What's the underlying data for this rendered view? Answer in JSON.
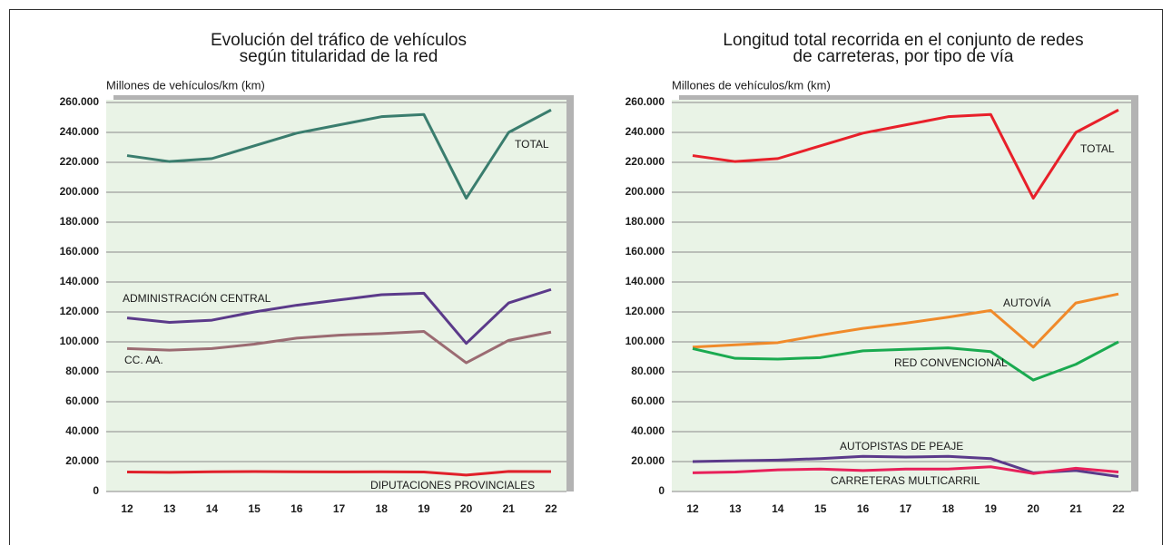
{
  "chart_data": [
    {
      "type": "line",
      "title": [
        "Evolución del tráfico de vehículos",
        "según titularidad de la red"
      ],
      "y_label": "Millones de vehículos/km (km)",
      "categories": [
        "12",
        "13",
        "14",
        "15",
        "16",
        "17",
        "18",
        "19",
        "20",
        "21",
        "22"
      ],
      "ylim": [
        0,
        260000
      ],
      "yticks": [
        0,
        {
          "value": 20000,
          "label": "20.000"
        },
        {
          "value": 40000,
          "label": "40.000"
        },
        {
          "value": 60000,
          "label": "60.000"
        },
        {
          "value": 80000,
          "label": "80.000"
        },
        {
          "value": 100000,
          "label": "100.000"
        },
        {
          "value": 120000,
          "label": "120.000"
        },
        {
          "value": 140000,
          "label": "140.000"
        },
        {
          "value": 160000,
          "label": "160.000"
        },
        {
          "value": 180000,
          "label": "180.000"
        },
        {
          "value": 200000,
          "label": "200.000"
        },
        {
          "value": 220000,
          "label": "220.000"
        },
        {
          "value": 240000,
          "label": "240.000"
        },
        {
          "value": 260000,
          "label": "260.000"
        }
      ],
      "grid": true,
      "series": [
        {
          "name": "TOTAL",
          "color": "#3a7d6e",
          "values": [
            224500,
            220500,
            222500,
            231000,
            239500,
            245000,
            250500,
            252000,
            196000,
            240000,
            255000
          ]
        },
        {
          "name": "ADMINISTRACIÓN CENTRAL",
          "color": "#5b3a8a",
          "values": [
            116000,
            113000,
            114500,
            120000,
            124500,
            128000,
            131500,
            132500,
            99000,
            126000,
            135000
          ]
        },
        {
          "name": "CC. AA.",
          "color": "#9b6b72",
          "values": [
            95500,
            94500,
            95500,
            98500,
            102500,
            104500,
            105500,
            107000,
            86000,
            101000,
            106500
          ]
        },
        {
          "name": "DIPUTACIONES PROVINCIALES",
          "color": "#e0202a",
          "values": [
            13000,
            12800,
            13200,
            13300,
            13200,
            13100,
            13200,
            13000,
            11000,
            13400,
            13300
          ]
        }
      ]
    },
    {
      "type": "line",
      "title": [
        "Longitud  total recorrida en el conjunto de redes",
        "de carreteras, por tipo de vía"
      ],
      "y_label": "Millones de vehículos/km (km)",
      "categories": [
        "12",
        "13",
        "14",
        "15",
        "16",
        "17",
        "18",
        "19",
        "20",
        "21",
        "22"
      ],
      "ylim": [
        0,
        260000
      ],
      "yticks": [
        0,
        {
          "value": 20000,
          "label": "20.000"
        },
        {
          "value": 40000,
          "label": "40.000"
        },
        {
          "value": 60000,
          "label": "60.000"
        },
        {
          "value": 80000,
          "label": "80.000"
        },
        {
          "value": 100000,
          "label": "100.000"
        },
        {
          "value": 120000,
          "label": "120.000"
        },
        {
          "value": 140000,
          "label": "140.000"
        },
        {
          "value": 160000,
          "label": "160.000"
        },
        {
          "value": 180000,
          "label": "180.000"
        },
        {
          "value": 200000,
          "label": "200.000"
        },
        {
          "value": 220000,
          "label": "220.000"
        },
        {
          "value": 240000,
          "label": "240.000"
        },
        {
          "value": 260000,
          "label": "260.000"
        }
      ],
      "grid": true,
      "series": [
        {
          "name": "TOTAL",
          "color": "#e8202a",
          "values": [
            224500,
            220500,
            222500,
            231000,
            239500,
            245000,
            250500,
            252000,
            196000,
            240000,
            255000
          ]
        },
        {
          "name": "AUTOVÍA",
          "color": "#f08a2a",
          "values": [
            96500,
            98000,
            99500,
            104500,
            109000,
            112500,
            116500,
            121000,
            96500,
            126000,
            132000
          ]
        },
        {
          "name": "RED CONVENCIONAL",
          "color": "#1aaa50",
          "values": [
            95500,
            89000,
            88500,
            89500,
            94000,
            95000,
            96000,
            93500,
            74500,
            85000,
            100000
          ]
        },
        {
          "name": "AUTOPISTAS DE PEAJE",
          "color": "#5b3a8a",
          "values": [
            20000,
            20500,
            21000,
            22000,
            23500,
            23000,
            23500,
            22000,
            12500,
            14000,
            10000
          ]
        },
        {
          "name": "CARRETERAS MULTICARRIL",
          "color": "#e8205a",
          "values": [
            12500,
            13000,
            14500,
            15000,
            14000,
            15000,
            15000,
            16500,
            12000,
            15500,
            13000
          ]
        }
      ]
    }
  ]
}
